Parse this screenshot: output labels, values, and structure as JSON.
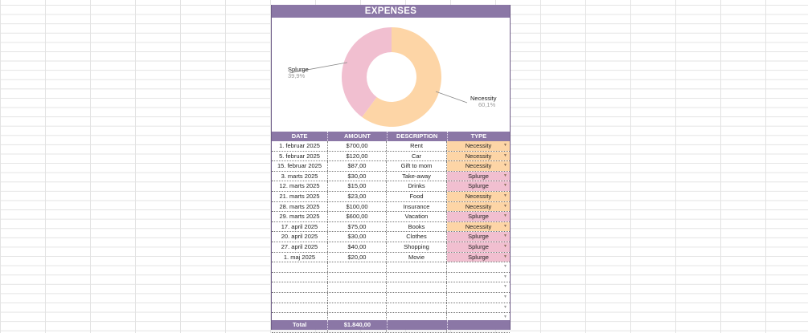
{
  "title": "EXPENSES",
  "columns": {
    "date": "DATE",
    "amount": "AMOUNT",
    "description": "DESCRIPTION",
    "type": "TYPE"
  },
  "chart_data": {
    "type": "pie",
    "donut": true,
    "slices": [
      {
        "label": "Necessity",
        "percent_label": "60,1%",
        "value": 60.1,
        "color": "#fdd5a6"
      },
      {
        "label": "Splurge",
        "percent_label": "39,9%",
        "value": 39.9,
        "color": "#f1bfd0"
      }
    ]
  },
  "rows": [
    {
      "date": "1. februar 2025",
      "amount": "$700,00",
      "description": "Rent",
      "type": "Necessity"
    },
    {
      "date": "5. februar 2025",
      "amount": "$120,00",
      "description": "Car",
      "type": "Necessity"
    },
    {
      "date": "15. februar 2025",
      "amount": "$87,00",
      "description": "Gift to mom",
      "type": "Necessity"
    },
    {
      "date": "3. marts 2025",
      "amount": "$30,00",
      "description": "Take-away",
      "type": "Splurge"
    },
    {
      "date": "12. marts 2025",
      "amount": "$15,00",
      "description": "Drinks",
      "type": "Splurge"
    },
    {
      "date": "21. marts 2025",
      "amount": "$23,00",
      "description": "Food",
      "type": "Necessity"
    },
    {
      "date": "28. marts 2025",
      "amount": "$100,00",
      "description": "Insurance",
      "type": "Necessity"
    },
    {
      "date": "29. marts 2025",
      "amount": "$600,00",
      "description": "Vacation",
      "type": "Splurge"
    },
    {
      "date": "17. april 2025",
      "amount": "$75,00",
      "description": "Books",
      "type": "Necessity"
    },
    {
      "date": "20. april 2025",
      "amount": "$30,00",
      "description": "Clothes",
      "type": "Splurge"
    },
    {
      "date": "27. april 2025",
      "amount": "$40,00",
      "description": "Shopping",
      "type": "Splurge"
    },
    {
      "date": "1. maj 2025",
      "amount": "$20,00",
      "description": "Movie",
      "type": "Splurge"
    }
  ],
  "empty_rows": 7,
  "total": {
    "label": "Total",
    "amount": "$1.840,00"
  }
}
